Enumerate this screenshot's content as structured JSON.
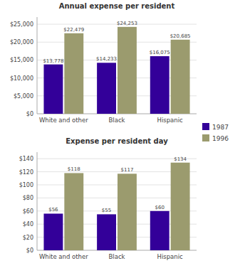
{
  "chart_data": [
    {
      "type": "bar",
      "title": "Annual expense per resident",
      "categories": [
        "White and other",
        "Black",
        "Hispanic"
      ],
      "series": [
        {
          "name": "1987",
          "color": "#330099",
          "values": [
            13778,
            14233,
            16075
          ],
          "value_labels": [
            "$13,778",
            "$14,233",
            "$16,075"
          ]
        },
        {
          "name": "1996",
          "color": "#9b9b6e",
          "values": [
            22479,
            24253,
            20685
          ],
          "value_labels": [
            "$22,479",
            "$24,253",
            "$20,685"
          ]
        }
      ],
      "ylim": [
        0,
        27000
      ],
      "yticks": [
        {
          "value": 0,
          "label": "$0"
        },
        {
          "value": 5000,
          "label": "$5,000"
        },
        {
          "value": 10000,
          "label": "$10,000"
        },
        {
          "value": 15000,
          "label": "$15,000"
        },
        {
          "value": 20000,
          "label": "$20,000"
        },
        {
          "value": 25000,
          "label": "$25,000"
        }
      ],
      "grid": true,
      "data_labels": true,
      "legend": "right"
    },
    {
      "type": "bar",
      "title": "Expense per resident day",
      "categories": [
        "White and other",
        "Black",
        "Hispanic"
      ],
      "series": [
        {
          "name": "1987",
          "color": "#330099",
          "values": [
            56,
            55,
            60
          ],
          "value_labels": [
            "$56",
            "$55",
            "$60"
          ]
        },
        {
          "name": "1996",
          "color": "#9b9b6e",
          "values": [
            118,
            117,
            134
          ],
          "value_labels": [
            "$118",
            "$117",
            "$134"
          ]
        }
      ],
      "ylim": [
        0,
        150
      ],
      "yticks": [
        {
          "value": 0,
          "label": "$0"
        },
        {
          "value": 20,
          "label": "$20"
        },
        {
          "value": 40,
          "label": "$40"
        },
        {
          "value": 60,
          "label": "$60"
        },
        {
          "value": 80,
          "label": "$80"
        },
        {
          "value": 100,
          "label": "$100"
        },
        {
          "value": 120,
          "label": "$120"
        },
        {
          "value": 140,
          "label": "$140"
        }
      ],
      "grid": true,
      "data_labels": true
    }
  ]
}
